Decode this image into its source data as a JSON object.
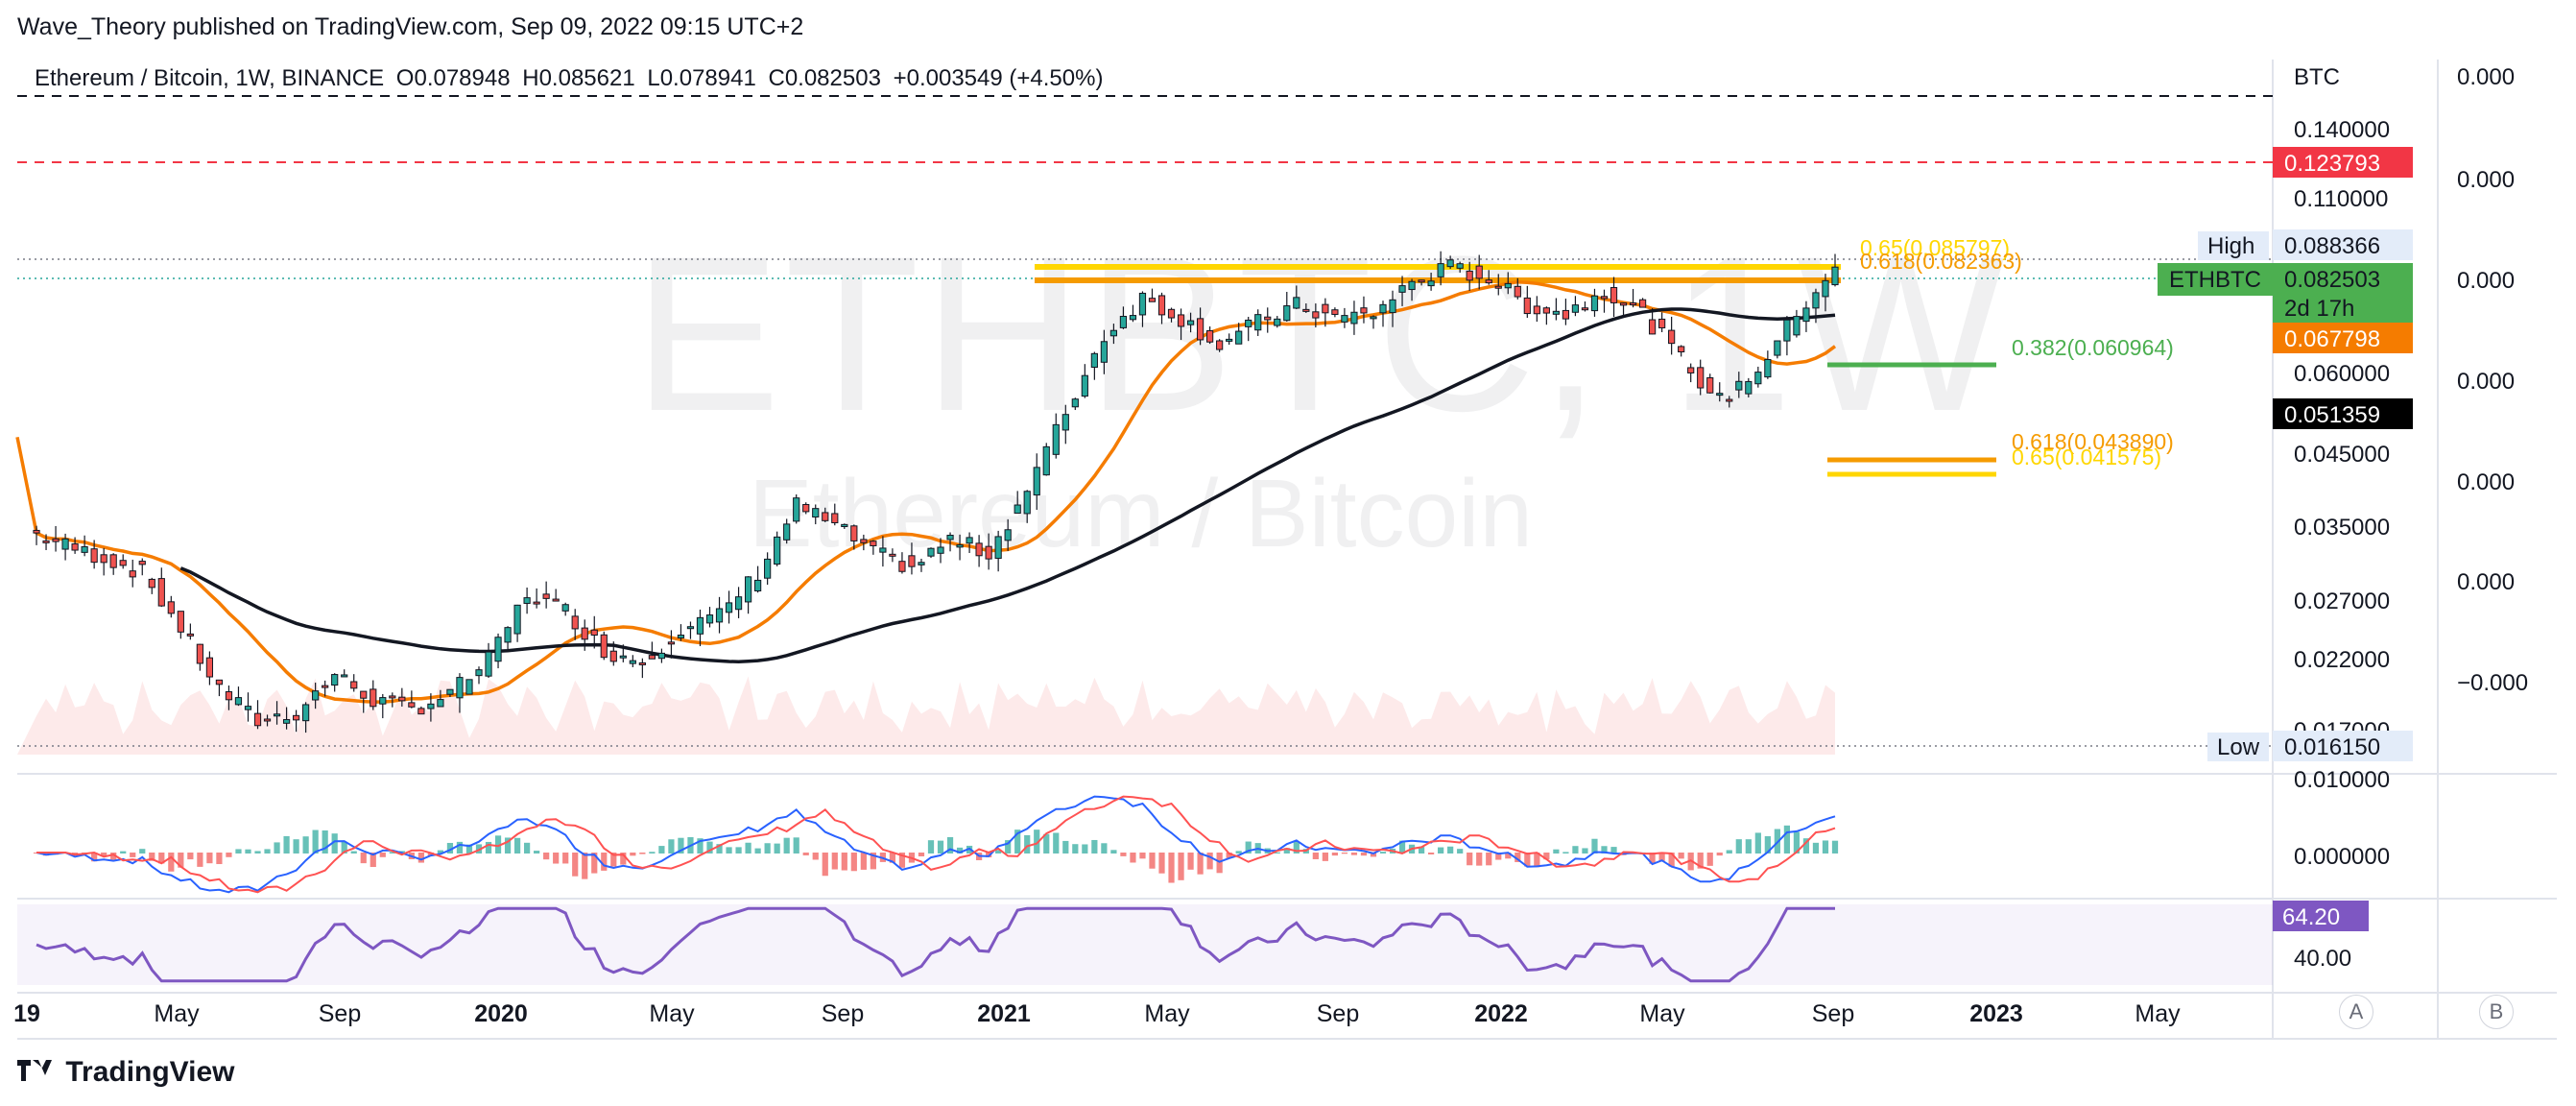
{
  "publisher": "Wave_Theory published on TradingView.com, Sep 09, 2022 09:15 UTC+2",
  "legend": {
    "symbol": "Ethereum / Bitcoin, 1W, BINANCE",
    "open": "O0.078948",
    "high": "H0.085621",
    "low": "L0.078941",
    "close": "C0.082503",
    "change": "+0.003549 (+4.50%)"
  },
  "watermark": {
    "ticker": "ETHBTC, 1W",
    "name": "Ethereum / Bitcoin"
  },
  "brand": "TradingView",
  "buttons": {
    "a": "A",
    "b": "B"
  },
  "colors": {
    "up": "#26a69a",
    "down": "#ef5350",
    "ema": "#f57c00",
    "sma": "#131722",
    "fib_gold": "#ffd600",
    "fib_orange": "#f59b00",
    "fib_green": "#4caf50",
    "red_line": "#f23645",
    "macd": "#2962ff",
    "signal": "#ff5252",
    "rsi": "#7e57c2"
  },
  "chart_data": [
    {
      "type": "candlestick",
      "title": "Ethereum / Bitcoin, 1W, BINANCE",
      "price_scale_label": "BTC",
      "scale": "log",
      "ylim": [
        0.0155,
        0.16
      ],
      "y_ticks": [
        "0.140000",
        "0.110000",
        "0.060000",
        "0.045000",
        "0.035000",
        "0.027000",
        "0.022000",
        "0.017000",
        "0.010000"
      ],
      "x_ticks": [
        "19",
        "May",
        "Sep",
        "2020",
        "May",
        "Sep",
        "2021",
        "May",
        "Sep",
        "2022",
        "May",
        "Sep",
        "2023",
        "May"
      ],
      "closes_approx": [
        0.0335,
        0.0318,
        0.0305,
        0.029,
        0.024,
        0.0195,
        0.0175,
        0.018,
        0.0205,
        0.0188,
        0.0182,
        0.0192,
        0.0215,
        0.027,
        0.0255,
        0.0222,
        0.0215,
        0.024,
        0.025,
        0.029,
        0.0365,
        0.034,
        0.031,
        0.0295,
        0.0325,
        0.031,
        0.0385,
        0.05,
        0.065,
        0.074,
        0.069,
        0.063,
        0.068,
        0.072,
        0.069,
        0.07,
        0.078,
        0.082,
        0.079,
        0.072,
        0.07,
        0.076,
        0.07,
        0.06,
        0.052,
        0.058,
        0.07,
        0.0825
      ],
      "markers": [
        {
          "label": "High",
          "value": "0.088366"
        },
        {
          "label": "ETHBTC",
          "value": "0.082503",
          "countdown": "2d 17h"
        },
        {
          "label": "",
          "value": "0.067798"
        },
        {
          "label": "",
          "value": "0.051359"
        },
        {
          "label": "",
          "value": "0.123793"
        },
        {
          "label": "Low",
          "value": "0.016150"
        }
      ],
      "fib_levels": [
        {
          "label": "0.65(0.085797)",
          "value": 0.085797
        },
        {
          "label": "0.618(0.082363)",
          "value": 0.082363
        },
        {
          "label": "0.382(0.060964)",
          "value": 0.060964
        },
        {
          "label": "0.618(0.043890)",
          "value": 0.04389
        },
        {
          "label": "0.65(0.041575)",
          "value": 0.041575
        }
      ],
      "horizontal_lines": [
        0.152,
        0.123793
      ]
    },
    {
      "type": "line",
      "indicator": "MACD",
      "y_ticks": [
        "0.000000"
      ]
    },
    {
      "type": "line",
      "indicator": "RSI",
      "value_label": "64.20",
      "y_ticks": [
        "40.00"
      ]
    }
  ],
  "left_scale_ticks": [
    "0.000",
    "0.000",
    "0.000",
    "0.000",
    "0.000",
    "0.000",
    "−0.000"
  ]
}
